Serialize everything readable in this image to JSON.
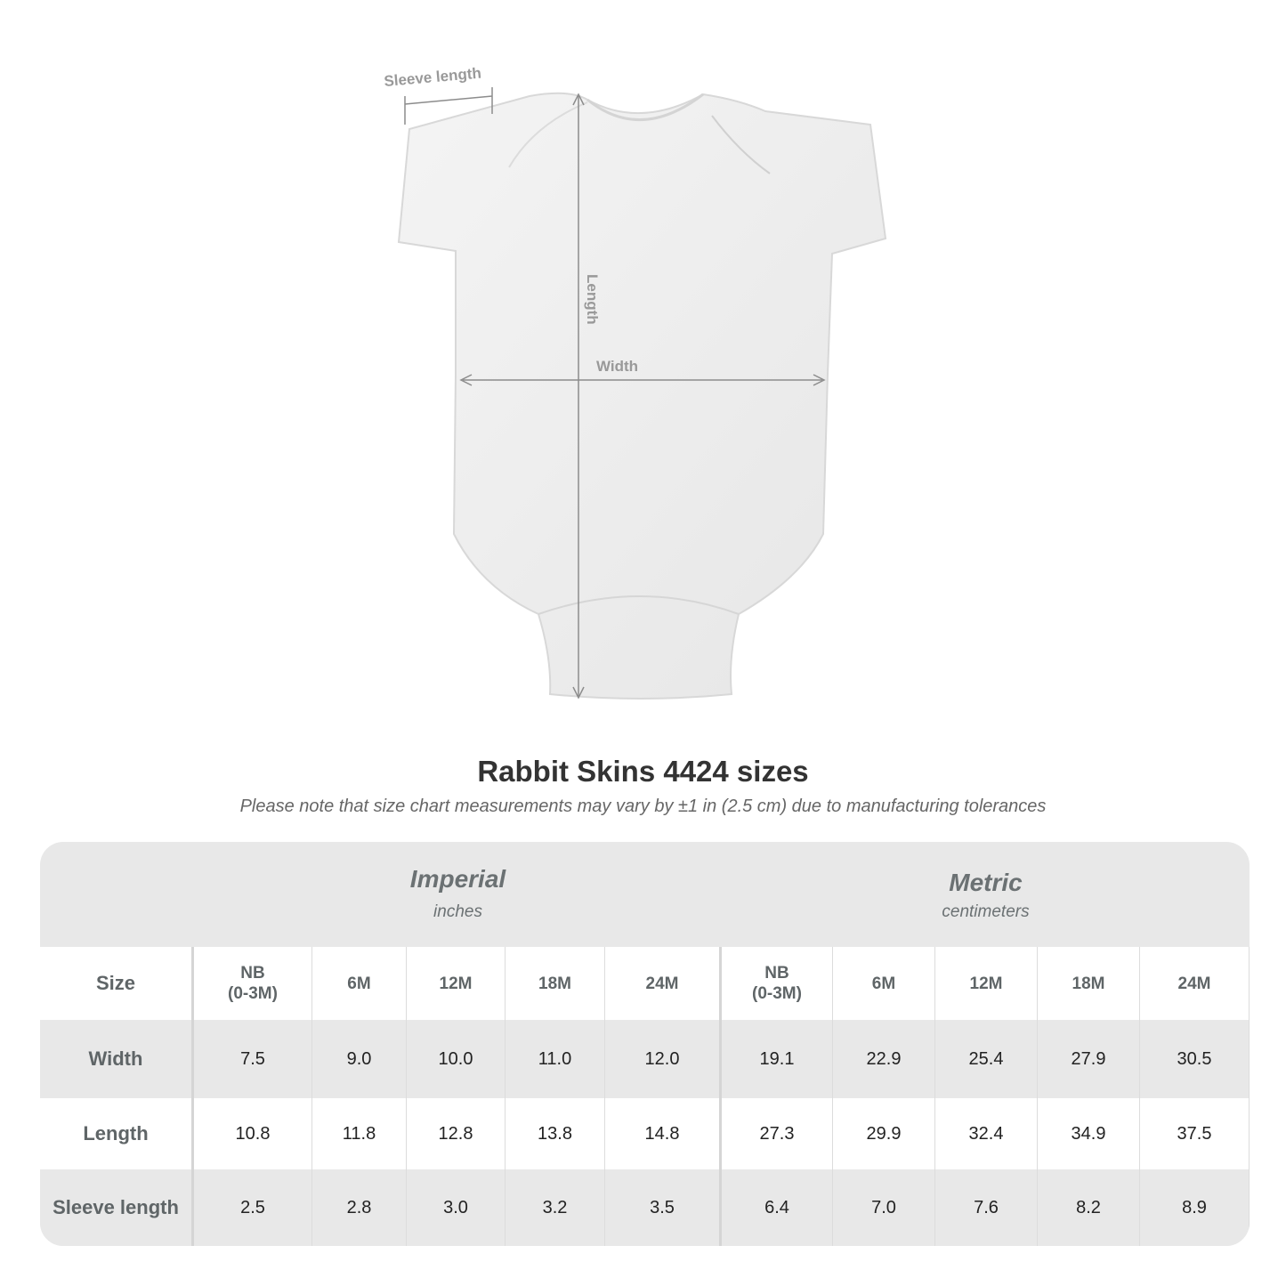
{
  "diagram": {
    "labels": {
      "sleeve": "Sleeve length",
      "length": "Length",
      "width": "Width"
    }
  },
  "title": "Rabbit Skins 4424 sizes",
  "note": "Please note that size chart measurements may vary by ±1 in (2.5 cm) due to manufacturing tolerances",
  "table": {
    "imperial": {
      "name": "Imperial",
      "unit": "inches"
    },
    "metric": {
      "name": "Metric",
      "unit": "centimeters"
    },
    "size_label": "Size",
    "sizes": [
      "NB\n(0-3M)",
      "6M",
      "12M",
      "18M",
      "24M"
    ],
    "rows": [
      {
        "label": "Width",
        "imperial": [
          "7.5",
          "9.0",
          "10.0",
          "11.0",
          "12.0"
        ],
        "metric": [
          "19.1",
          "22.9",
          "25.4",
          "27.9",
          "30.5"
        ]
      },
      {
        "label": "Length",
        "imperial": [
          "10.8",
          "11.8",
          "12.8",
          "13.8",
          "14.8"
        ],
        "metric": [
          "27.3",
          "29.9",
          "32.4",
          "34.9",
          "37.5"
        ]
      },
      {
        "label": "Sleeve length",
        "imperial": [
          "2.5",
          "2.8",
          "3.0",
          "3.2",
          "3.5"
        ],
        "metric": [
          "6.4",
          "7.0",
          "7.6",
          "8.2",
          "8.9"
        ]
      }
    ]
  },
  "colors": {
    "band": "#e8e8e8",
    "label_text": "#5f6567",
    "measure_line": "#8c8c8c"
  }
}
